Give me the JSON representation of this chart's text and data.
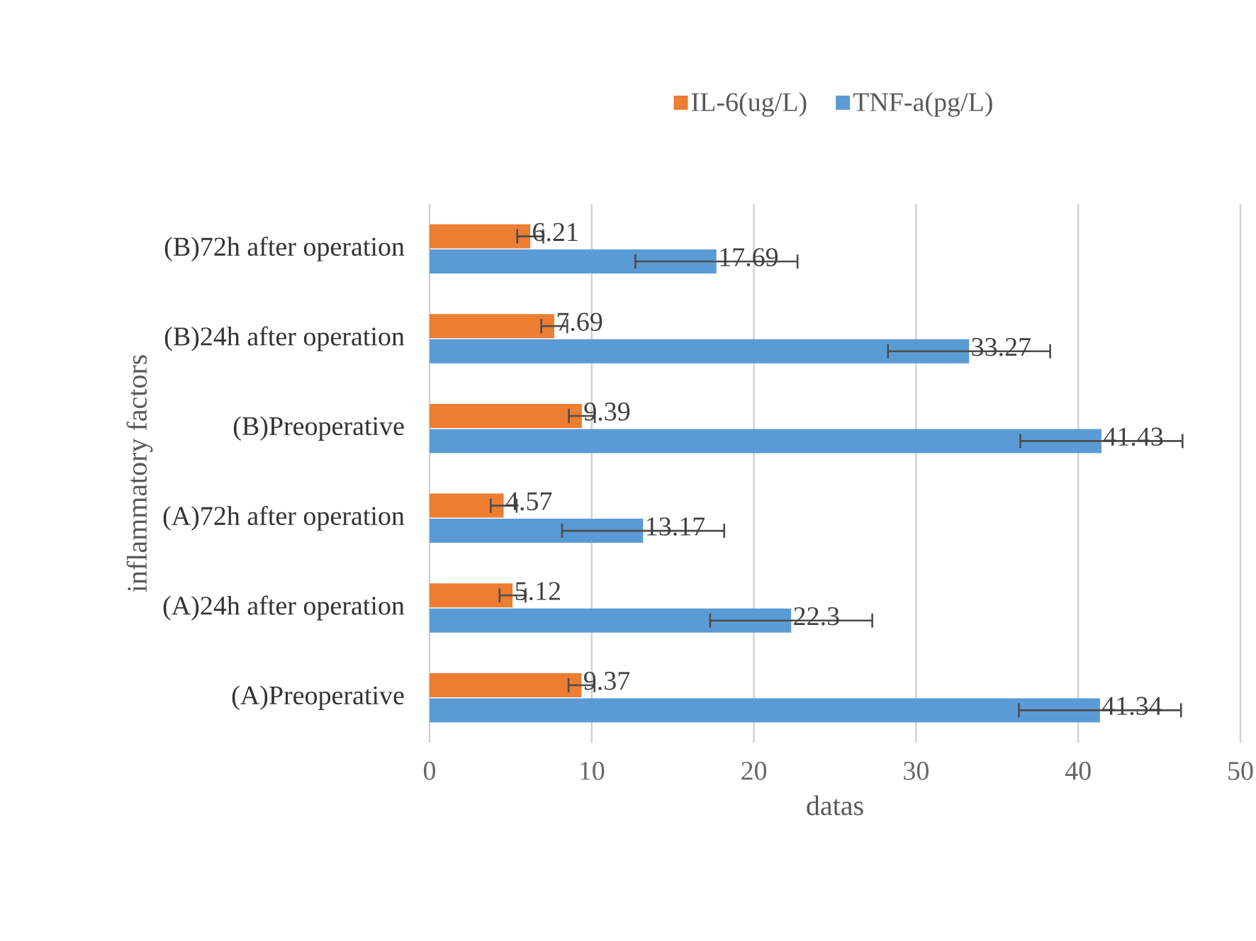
{
  "chart_data": {
    "type": "bar",
    "orientation": "horizontal",
    "xlabel": "datas",
    "ylabel": "inflammatory factors",
    "categories": [
      "(B)72h after operation",
      "(B)24h after operation",
      "(B)Preoperative",
      "(A)72h after operation",
      "(A)24h after operation",
      "(A)Preoperative"
    ],
    "series": [
      {
        "name": "IL-6(ug/L)",
        "color": "#ed7d31",
        "values": [
          6.21,
          7.69,
          9.39,
          4.57,
          5.12,
          9.37
        ],
        "errors": [
          0.8,
          0.8,
          0.8,
          0.8,
          0.8,
          0.8
        ]
      },
      {
        "name": "TNF-a(pg/L)",
        "color": "#5b9bd5",
        "values": [
          17.69,
          33.27,
          41.43,
          13.17,
          22.3,
          41.34
        ],
        "errors": [
          5,
          5,
          5,
          5,
          5,
          5
        ]
      }
    ],
    "xlim": [
      0,
      50
    ],
    "xticks": [
      0,
      10,
      20,
      30,
      40,
      50
    ],
    "grid": "x",
    "legend": "top",
    "data_labels": true
  }
}
